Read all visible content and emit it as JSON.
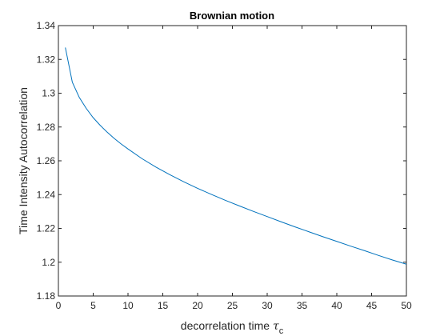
{
  "chart_data": {
    "type": "line",
    "title": "Brownian motion",
    "xlabel_main": "decorrelation time ",
    "xlabel_symbol": "τ",
    "xlabel_subscript": "c",
    "ylabel": "Time Intensity Autocorrelation",
    "xlim": [
      0,
      50
    ],
    "ylim": [
      1.18,
      1.34
    ],
    "x_ticks": [
      0,
      5,
      10,
      15,
      20,
      25,
      30,
      35,
      40,
      45,
      50
    ],
    "x_tick_labels": [
      "0",
      "5",
      "10",
      "15",
      "20",
      "25",
      "30",
      "35",
      "40",
      "45",
      "50"
    ],
    "y_ticks": [
      1.18,
      1.2,
      1.22,
      1.24,
      1.26,
      1.28,
      1.3,
      1.32,
      1.34
    ],
    "y_tick_labels": [
      "1.18",
      "1.2",
      "1.22",
      "1.24",
      "1.26",
      "1.28",
      "1.3",
      "1.32",
      "1.34"
    ],
    "grid": false,
    "line_color": "#0072BD",
    "series": [
      {
        "x": [
          1,
          2,
          3,
          4,
          5,
          6,
          7,
          8,
          9,
          10,
          12,
          14,
          16,
          18,
          20,
          22,
          24,
          26,
          28,
          30,
          32,
          34,
          36,
          38,
          40,
          42,
          44,
          46,
          48,
          50
        ],
        "values": [
          1.327,
          1.3065,
          1.2975,
          1.291,
          1.2855,
          1.281,
          1.277,
          1.2733,
          1.27,
          1.267,
          1.2613,
          1.2563,
          1.2518,
          1.2476,
          1.2437,
          1.2401,
          1.2366,
          1.2333,
          1.2301,
          1.227,
          1.2239,
          1.2209,
          1.218,
          1.2151,
          1.2123,
          1.2095,
          1.2068,
          1.204,
          1.2013,
          1.1988
        ]
      }
    ]
  }
}
